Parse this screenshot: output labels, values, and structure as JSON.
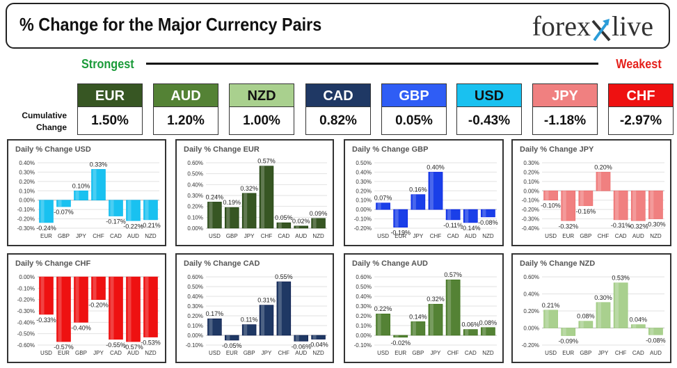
{
  "header": {
    "title": "% Change for the Major Currency Pairs",
    "logo_left": "forex",
    "logo_right": "live"
  },
  "strongest_label": "Strongest",
  "weakest_label": "Weakest",
  "cumulative_label_1": "Cumulative",
  "cumulative_label_2": "Change",
  "currencies": [
    {
      "name": "EUR",
      "value": "1.50%",
      "color": "#375623",
      "text": "#ffffff"
    },
    {
      "name": "AUD",
      "value": "1.20%",
      "color": "#548235",
      "text": "#ffffff"
    },
    {
      "name": "NZD",
      "value": "1.00%",
      "color": "#a9d08e",
      "text": "#111111"
    },
    {
      "name": "CAD",
      "value": "0.82%",
      "color": "#1f3864",
      "text": "#ffffff"
    },
    {
      "name": "GBP",
      "value": "0.05%",
      "color": "#2f5df5",
      "text": "#ffffff"
    },
    {
      "name": "USD",
      "value": "-0.43%",
      "color": "#19c1f0",
      "text": "#111111"
    },
    {
      "name": "JPY",
      "value": "-1.18%",
      "color": "#f08080",
      "text": "#ffffff"
    },
    {
      "name": "CHF",
      "value": "-2.97%",
      "color": "#ee1111",
      "text": "#ffffff"
    }
  ],
  "chart_data": [
    {
      "type": "bar",
      "title": "Daily % Change USD",
      "categories": [
        "EUR",
        "GBP",
        "JPY",
        "CHF",
        "CAD",
        "AUD",
        "NZD"
      ],
      "values": [
        -0.24,
        -0.07,
        0.1,
        0.33,
        -0.17,
        -0.22,
        -0.21
      ],
      "labels": [
        "-0.24%",
        "-0.07%",
        "0.10%",
        "0.33%",
        "-0.17%",
        "-0.22%",
        "-0.21%"
      ],
      "yticks": [
        "0.40%",
        "0.30%",
        "0.20%",
        "0.10%",
        "0.00%",
        "-0.10%",
        "-0.20%",
        "-0.30%"
      ],
      "ylim": [
        -0.3,
        0.4
      ],
      "color": "#19c1f0"
    },
    {
      "type": "bar",
      "title": "Daily % Change EUR",
      "categories": [
        "USD",
        "GBP",
        "JPY",
        "CHF",
        "CAD",
        "AUD",
        "NZD"
      ],
      "values": [
        0.24,
        0.19,
        0.32,
        0.57,
        0.05,
        0.02,
        0.09
      ],
      "labels": [
        "0.24%",
        "0.19%",
        "0.32%",
        "0.57%",
        "0.05%",
        "0.02%",
        "0.09%"
      ],
      "yticks": [
        "0.60%",
        "0.50%",
        "0.40%",
        "0.30%",
        "0.20%",
        "0.10%",
        "0.00%"
      ],
      "ylim": [
        0,
        0.6
      ],
      "color": "#375623"
    },
    {
      "type": "bar",
      "title": "Daily % Change GBP",
      "categories": [
        "USD",
        "EUR",
        "JPY",
        "CHF",
        "CAD",
        "AUD",
        "NZD"
      ],
      "values": [
        0.07,
        -0.19,
        0.16,
        0.4,
        -0.11,
        -0.14,
        -0.08
      ],
      "labels": [
        "0.07%",
        "-0.19%",
        "0.16%",
        "0.40%",
        "-0.11%",
        "-0.14%",
        "-0.08%"
      ],
      "yticks": [
        "0.50%",
        "0.40%",
        "0.30%",
        "0.20%",
        "0.10%",
        "0.00%",
        "-0.10%",
        "-0.20%"
      ],
      "ylim": [
        -0.2,
        0.5
      ],
      "color": "#1a3fe8"
    },
    {
      "type": "bar",
      "title": "Daily % Change JPY",
      "categories": [
        "USD",
        "EUR",
        "GBP",
        "CHF",
        "CAD",
        "AUD",
        "NZD"
      ],
      "values": [
        -0.1,
        -0.32,
        -0.16,
        0.2,
        -0.31,
        -0.32,
        -0.3
      ],
      "labels": [
        "-0.10%",
        "-0.32%",
        "-0.16%",
        "0.20%",
        "-0.31%",
        "-0.32%",
        "-0.30%"
      ],
      "yticks": [
        "0.30%",
        "0.20%",
        "0.10%",
        "0.00%",
        "-0.10%",
        "-0.20%",
        "-0.30%",
        "-0.40%"
      ],
      "ylim": [
        -0.4,
        0.3
      ],
      "color": "#f08080"
    },
    {
      "type": "bar",
      "title": "Daily % Change CHF",
      "categories": [
        "USD",
        "EUR",
        "GBP",
        "JPY",
        "CAD",
        "AUD",
        "NZD"
      ],
      "values": [
        -0.33,
        -0.57,
        -0.4,
        -0.2,
        -0.55,
        -0.57,
        -0.53
      ],
      "labels": [
        "-0.33%",
        "-0.57%",
        "-0.40%",
        "-0.20%",
        "-0.55%",
        "-0.57%",
        "-0.53%"
      ],
      "yticks": [
        "0.00%",
        "-0.10%",
        "-0.20%",
        "-0.30%",
        "-0.40%",
        "-0.50%",
        "-0.60%"
      ],
      "ylim": [
        -0.6,
        0
      ],
      "color": "#ee1111"
    },
    {
      "type": "bar",
      "title": "Daily % Change CAD",
      "categories": [
        "USD",
        "EUR",
        "GBP",
        "JPY",
        "CHF",
        "AUD",
        "NZD"
      ],
      "values": [
        0.17,
        -0.05,
        0.11,
        0.31,
        0.55,
        -0.06,
        -0.04
      ],
      "labels": [
        "0.17%",
        "-0.05%",
        "0.11%",
        "0.31%",
        "0.55%",
        "-0.06%",
        "-0.04%"
      ],
      "yticks": [
        "0.60%",
        "0.50%",
        "0.40%",
        "0.30%",
        "0.20%",
        "0.10%",
        "0.00%",
        "-0.10%"
      ],
      "ylim": [
        -0.1,
        0.6
      ],
      "color": "#1f3864"
    },
    {
      "type": "bar",
      "title": "Daily % Change AUD",
      "categories": [
        "USD",
        "EUR",
        "GBP",
        "JPY",
        "CHF",
        "CAD",
        "NZD"
      ],
      "values": [
        0.22,
        -0.02,
        0.14,
        0.32,
        0.57,
        0.06,
        0.08
      ],
      "labels": [
        "0.22%",
        "-0.02%",
        "0.14%",
        "0.32%",
        "0.57%",
        "0.06%",
        "0.08%"
      ],
      "yticks": [
        "0.60%",
        "0.50%",
        "0.40%",
        "0.30%",
        "0.20%",
        "0.10%",
        "0.00%",
        "-0.10%"
      ],
      "ylim": [
        -0.1,
        0.6
      ],
      "color": "#548235"
    },
    {
      "type": "bar",
      "title": "Daily % Change NZD",
      "categories": [
        "USD",
        "EUR",
        "GBP",
        "JPY",
        "CHF",
        "CAD",
        "AUD"
      ],
      "values": [
        0.21,
        -0.09,
        0.08,
        0.3,
        0.53,
        0.04,
        -0.08
      ],
      "labels": [
        "0.21%",
        "-0.09%",
        "0.08%",
        "0.30%",
        "0.53%",
        "0.04%",
        "-0.08%"
      ],
      "yticks": [
        "0.60%",
        "0.40%",
        "0.20%",
        "0.00%",
        "-0.20%"
      ],
      "ylim": [
        -0.2,
        0.6
      ],
      "color": "#a9d08e"
    }
  ]
}
